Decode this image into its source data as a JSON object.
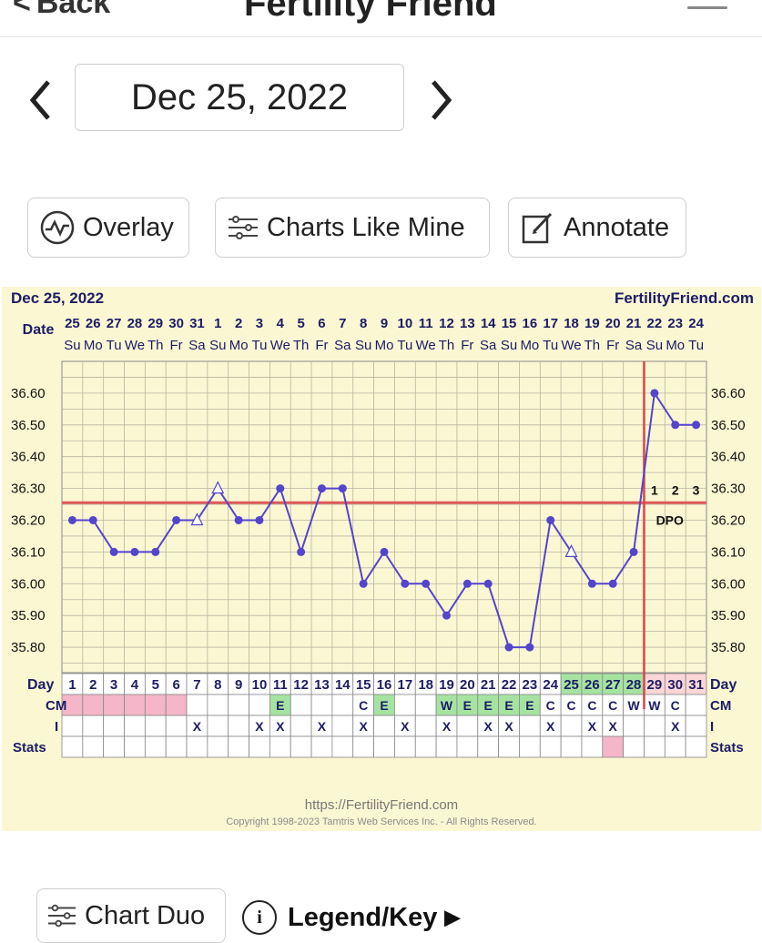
{
  "header": {
    "back_label": "Back",
    "title": "Fertility Friend"
  },
  "date_nav": {
    "date": "Dec 25, 2022"
  },
  "actions": {
    "overlay": "Overlay",
    "charts_like_mine": "Charts Like Mine",
    "annotate": "Annotate"
  },
  "chart_data": {
    "type": "line",
    "date_title": "Dec 25, 2022",
    "site": "FertilityFriend.com",
    "row_labels": {
      "date": "Date",
      "day": "Day",
      "cm": "CM",
      "intercourse": "I",
      "stats": "Stats"
    },
    "dates": [
      "25",
      "26",
      "27",
      "28",
      "29",
      "30",
      "31",
      "1",
      "2",
      "3",
      "4",
      "5",
      "6",
      "7",
      "8",
      "9",
      "10",
      "11",
      "12",
      "13",
      "14",
      "15",
      "16",
      "17",
      "18",
      "19",
      "20",
      "21",
      "22",
      "23",
      "24"
    ],
    "weekdays": [
      "Su",
      "Mo",
      "Tu",
      "We",
      "Th",
      "Fr",
      "Sa",
      "Su",
      "Mo",
      "Tu",
      "We",
      "Th",
      "Fr",
      "Sa",
      "Su",
      "Mo",
      "Tu",
      "We",
      "Th",
      "Fr",
      "Sa",
      "Su",
      "Mo",
      "Tu",
      "We",
      "Th",
      "Fr",
      "Sa",
      "Su",
      "Mo",
      "Tu"
    ],
    "cycle_days": [
      "1",
      "2",
      "3",
      "4",
      "5",
      "6",
      "7",
      "8",
      "9",
      "10",
      "11",
      "12",
      "13",
      "14",
      "15",
      "16",
      "17",
      "18",
      "19",
      "20",
      "21",
      "22",
      "23",
      "24",
      "25",
      "26",
      "27",
      "28",
      "29",
      "30",
      "31"
    ],
    "temperatures": [
      36.2,
      36.2,
      36.1,
      36.1,
      36.1,
      36.2,
      36.2,
      36.3,
      36.2,
      36.2,
      36.3,
      36.1,
      36.3,
      36.3,
      36.0,
      36.1,
      36.0,
      36.0,
      35.9,
      36.0,
      36.0,
      35.8,
      35.8,
      36.2,
      36.1,
      36.0,
      36.0,
      36.1,
      36.6,
      36.5,
      36.5
    ],
    "open_marker_days": [
      7,
      8,
      25
    ],
    "y_ticks": [
      "36.60",
      "36.50",
      "36.40",
      "36.30",
      "36.20",
      "36.10",
      "36.00",
      "35.90",
      "35.80"
    ],
    "ylim": [
      35.72,
      36.7
    ],
    "coverline": 36.255,
    "ovulation_day": 28,
    "dpo_labels": [
      "1",
      "2",
      "3"
    ],
    "dpo_text": "DPO",
    "cervical_mucus": [
      "",
      "",
      "",
      "",
      "",
      "",
      "",
      "",
      "",
      "",
      "E",
      "",
      "",
      "",
      "C",
      "E",
      "",
      "",
      "W",
      "E",
      "E",
      "E",
      "E",
      "C",
      "C",
      "C",
      "C",
      "W",
      "W",
      "C",
      ""
    ],
    "intercourse": [
      "",
      "",
      "",
      "",
      "",
      "",
      "X",
      "",
      "",
      "X",
      "X",
      "",
      "X",
      "",
      "X",
      "",
      "X",
      "",
      "X",
      "",
      "X",
      "X",
      "",
      "X",
      "",
      "X",
      "X",
      "",
      "",
      "X",
      ""
    ],
    "pink_cm_days": [
      1,
      2,
      3,
      4,
      5,
      6
    ],
    "green_cm_days": [
      11,
      16,
      19,
      20,
      21,
      22,
      23
    ],
    "green_day_days": [
      25,
      26,
      27,
      28
    ],
    "pink_day_days": [
      29,
      30,
      31
    ],
    "pink_stats_days": [
      27
    ],
    "colors": {
      "line": "#5544cc",
      "coverline": "#e05a5a",
      "ovulation": "#dd4444",
      "pink": "#f4b6c8",
      "green": "#a6e3a1",
      "background": "#fbf7d3"
    },
    "footer_url": "https://FertilityFriend.com",
    "copyright": "Copyright 1998-2023 Tamtris Web Services Inc. - All Rights Reserved."
  },
  "bottom": {
    "chart_duo": "Chart Duo",
    "legend": "Legend/Key",
    "legend_icon": "i"
  }
}
